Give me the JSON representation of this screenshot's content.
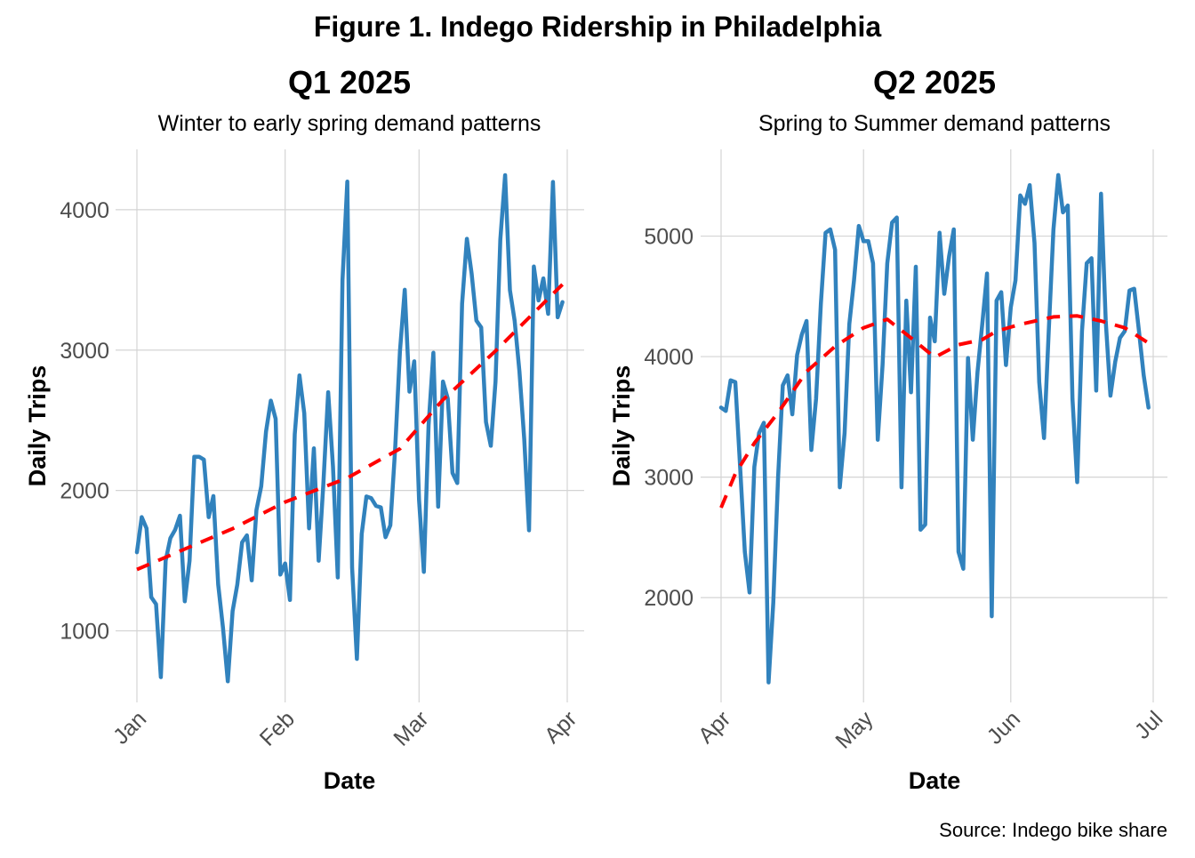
{
  "title": "Figure 1. Indego Ridership in Philadelphia",
  "caption": "Source: Indego bike share",
  "colors": {
    "actual": "#3182bd",
    "trend": "#ff0000",
    "grid": "#d4d4d4"
  },
  "chart_data": [
    {
      "type": "line",
      "title": "Q1 2025",
      "subtitle": "Winter to early spring demand patterns",
      "xlabel": "Date",
      "ylabel": "Daily Trips",
      "xlim": [
        "2025-01-01",
        "2025-04-01"
      ],
      "x_ticks": [
        {
          "date": "2025-01-01",
          "label": "Jan"
        },
        {
          "date": "2025-02-01",
          "label": "Feb"
        },
        {
          "date": "2025-03-01",
          "label": "Mar"
        },
        {
          "date": "2025-04-01",
          "label": "Apr"
        }
      ],
      "ylim": [
        490,
        4430
      ],
      "y_ticks": [
        1000,
        2000,
        3000,
        4000
      ],
      "grid": true,
      "series": [
        {
          "style": "solid",
          "x": [
            "2025-01-01",
            "2025-01-02",
            "2025-01-03",
            "2025-01-04",
            "2025-01-05",
            "2025-01-06",
            "2025-01-07",
            "2025-01-08",
            "2025-01-09",
            "2025-01-10",
            "2025-01-11",
            "2025-01-12",
            "2025-01-13",
            "2025-01-14",
            "2025-01-15",
            "2025-01-16",
            "2025-01-17",
            "2025-01-18",
            "2025-01-19",
            "2025-01-20",
            "2025-01-21",
            "2025-01-22",
            "2025-01-23",
            "2025-01-24",
            "2025-01-25",
            "2025-01-26",
            "2025-01-27",
            "2025-01-28",
            "2025-01-29",
            "2025-01-30",
            "2025-01-31",
            "2025-02-01",
            "2025-02-02",
            "2025-02-03",
            "2025-02-04",
            "2025-02-05",
            "2025-02-06",
            "2025-02-07",
            "2025-02-08",
            "2025-02-09",
            "2025-02-10",
            "2025-02-11",
            "2025-02-12",
            "2025-02-13",
            "2025-02-14",
            "2025-02-15",
            "2025-02-16",
            "2025-02-17",
            "2025-02-18",
            "2025-02-19",
            "2025-02-20",
            "2025-02-21",
            "2025-02-22",
            "2025-02-23",
            "2025-02-24",
            "2025-02-25",
            "2025-02-26",
            "2025-02-27",
            "2025-02-28",
            "2025-03-01",
            "2025-03-02",
            "2025-03-03",
            "2025-03-04",
            "2025-03-05",
            "2025-03-06",
            "2025-03-07",
            "2025-03-08",
            "2025-03-09",
            "2025-03-10",
            "2025-03-11",
            "2025-03-12",
            "2025-03-13",
            "2025-03-14",
            "2025-03-15",
            "2025-03-16",
            "2025-03-17",
            "2025-03-18",
            "2025-03-19",
            "2025-03-20",
            "2025-03-21",
            "2025-03-22",
            "2025-03-23",
            "2025-03-24",
            "2025-03-25",
            "2025-03-26",
            "2025-03-27",
            "2025-03-28",
            "2025-03-29",
            "2025-03-30",
            "2025-03-31"
          ],
          "values": [
            1560,
            1810,
            1730,
            1240,
            1190,
            670,
            1500,
            1660,
            1720,
            1820,
            1210,
            1500,
            2240,
            2240,
            2220,
            1810,
            1960,
            1330,
            1020,
            640,
            1140,
            1330,
            1630,
            1680,
            1360,
            1860,
            2030,
            2420,
            2640,
            2510,
            1400,
            1480,
            1220,
            2400,
            2820,
            2550,
            1730,
            2300,
            1500,
            2050,
            2700,
            2170,
            1380,
            3500,
            4200,
            1450,
            800,
            1690,
            1957,
            1945,
            1890,
            1880,
            1667,
            1752,
            2294,
            2990,
            3430,
            2704,
            2920,
            1933,
            1420,
            2463,
            2981,
            1884,
            2776,
            2655,
            2125,
            2053,
            3330,
            3793,
            3547,
            3210,
            3161,
            2487,
            2318,
            2776,
            3788,
            4246,
            3427,
            3210,
            2848,
            2366,
            1716,
            3595,
            3354,
            3511,
            3258,
            4198,
            3234,
            3342
          ]
        },
        {
          "style": "dashed",
          "x": [
            "2025-01-01",
            "2025-01-21",
            "2025-02-01",
            "2025-02-14",
            "2025-02-25",
            "2025-03-06",
            "2025-03-17",
            "2025-03-31"
          ],
          "values": [
            1437,
            1728,
            1918,
            2089,
            2297,
            2646,
            2994,
            3468
          ]
        }
      ]
    },
    {
      "type": "line",
      "title": "Q2 2025",
      "subtitle": "Spring to Summer demand patterns",
      "xlabel": "Date",
      "ylabel": "Daily Trips",
      "xlim": [
        "2025-04-01",
        "2025-07-01"
      ],
      "x_ticks": [
        {
          "date": "2025-04-01",
          "label": "Apr"
        },
        {
          "date": "2025-05-01",
          "label": "May"
        },
        {
          "date": "2025-06-01",
          "label": "Jun"
        },
        {
          "date": "2025-07-01",
          "label": "Jul"
        }
      ],
      "ylim": [
        1130,
        5720
      ],
      "y_ticks": [
        2000,
        3000,
        4000,
        5000
      ],
      "grid": true,
      "series": [
        {
          "style": "solid",
          "x": [
            "2025-04-01",
            "2025-04-02",
            "2025-04-03",
            "2025-04-04",
            "2025-04-05",
            "2025-04-06",
            "2025-04-07",
            "2025-04-08",
            "2025-04-09",
            "2025-04-10",
            "2025-04-11",
            "2025-04-12",
            "2025-04-13",
            "2025-04-14",
            "2025-04-15",
            "2025-04-16",
            "2025-04-17",
            "2025-04-18",
            "2025-04-19",
            "2025-04-20",
            "2025-04-21",
            "2025-04-22",
            "2025-04-23",
            "2025-04-24",
            "2025-04-25",
            "2025-04-26",
            "2025-04-27",
            "2025-04-28",
            "2025-04-29",
            "2025-04-30",
            "2025-05-01",
            "2025-05-02",
            "2025-05-03",
            "2025-05-04",
            "2025-05-05",
            "2025-05-06",
            "2025-05-07",
            "2025-05-08",
            "2025-05-09",
            "2025-05-10",
            "2025-05-11",
            "2025-05-12",
            "2025-05-13",
            "2025-05-14",
            "2025-05-15",
            "2025-05-16",
            "2025-05-17",
            "2025-05-18",
            "2025-05-19",
            "2025-05-20",
            "2025-05-21",
            "2025-05-22",
            "2025-05-23",
            "2025-05-24",
            "2025-05-25",
            "2025-05-26",
            "2025-05-27",
            "2025-05-28",
            "2025-05-29",
            "2025-05-30",
            "2025-05-31",
            "2025-06-01",
            "2025-06-02",
            "2025-06-03",
            "2025-06-04",
            "2025-06-05",
            "2025-06-06",
            "2025-06-07",
            "2025-06-08",
            "2025-06-09",
            "2025-06-10",
            "2025-06-11",
            "2025-06-12",
            "2025-06-13",
            "2025-06-14",
            "2025-06-15",
            "2025-06-16",
            "2025-06-17",
            "2025-06-18",
            "2025-06-19",
            "2025-06-20",
            "2025-06-21",
            "2025-06-22",
            "2025-06-23",
            "2025-06-24",
            "2025-06-25",
            "2025-06-26",
            "2025-06-27",
            "2025-06-28",
            "2025-06-29",
            "2025-06-30"
          ],
          "values": [
            3577,
            3549,
            3803,
            3789,
            3085,
            2380,
            2042,
            3085,
            3366,
            3451,
            1296,
            1958,
            3000,
            3761,
            3845,
            3521,
            4014,
            4183,
            4296,
            3225,
            3648,
            4437,
            5028,
            5056,
            4887,
            2915,
            3366,
            4268,
            4634,
            5085,
            4958,
            4958,
            4775,
            3310,
            3930,
            4775,
            5113,
            5155,
            2915,
            4465,
            3704,
            4746,
            2563,
            2606,
            4324,
            4127,
            5028,
            4521,
            4831,
            5056,
            2380,
            2239,
            3989,
            3310,
            3873,
            4268,
            4690,
            1845,
            4465,
            4535,
            3930,
            4408,
            4634,
            5338,
            5268,
            5423,
            4944,
            3789,
            3324,
            4211,
            5056,
            5507,
            5197,
            5254,
            3648,
            2958,
            4211,
            4775,
            4817,
            3718,
            5352,
            4296,
            3676,
            3958,
            4155,
            4211,
            4549,
            4563,
            4211,
            3845,
            3577
          ]
        },
        {
          "style": "dashed",
          "x": [
            "2025-04-01",
            "2025-04-04",
            "2025-04-08",
            "2025-04-13",
            "2025-04-19",
            "2025-04-25",
            "2025-05-01",
            "2025-05-06",
            "2025-05-11",
            "2025-05-16",
            "2025-05-21",
            "2025-05-26",
            "2025-05-29",
            "2025-06-03",
            "2025-06-10",
            "2025-06-15",
            "2025-06-20",
            "2025-06-25",
            "2025-06-30"
          ],
          "values": [
            2746,
            3028,
            3282,
            3535,
            3876,
            4085,
            4239,
            4310,
            4155,
            3994,
            4099,
            4141,
            4211,
            4268,
            4330,
            4338,
            4296,
            4239,
            4113
          ]
        }
      ]
    }
  ]
}
